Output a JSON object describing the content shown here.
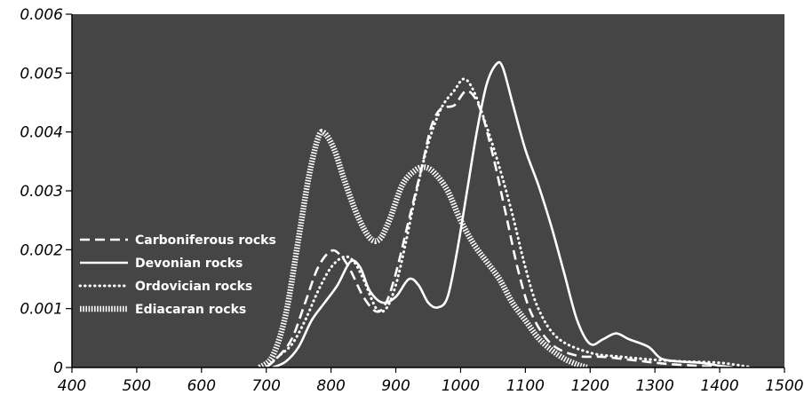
{
  "chart_data": {
    "type": "line",
    "title": "",
    "xlabel": "",
    "ylabel": "",
    "xlim": [
      400,
      1500
    ],
    "ylim": [
      0,
      0.006
    ],
    "x_ticks": [
      "400",
      "500",
      "600",
      "700",
      "800",
      "900",
      "1000",
      "1100",
      "1200",
      "1300",
      "1400",
      "1500"
    ],
    "y_ticks": [
      "0",
      "0.001",
      "0.002",
      "0.003",
      "0.004",
      "0.005",
      "0.006"
    ],
    "grid": false,
    "legend_position": "left",
    "colors": {
      "plot_background": "#454545",
      "series": "#ffffff",
      "axis": "#000000"
    },
    "series": [
      {
        "name": "Carboniferous rocks",
        "style": "dashed",
        "points": [
          [
            700,
            0
          ],
          [
            720,
            0.0002
          ],
          [
            740,
            0.0005
          ],
          [
            760,
            0.0011
          ],
          [
            780,
            0.0017
          ],
          [
            800,
            0.00198
          ],
          [
            815,
            0.0019
          ],
          [
            830,
            0.00165
          ],
          [
            850,
            0.0012
          ],
          [
            870,
            0.00095
          ],
          [
            885,
            0.0011
          ],
          [
            900,
            0.0016
          ],
          [
            920,
            0.0025
          ],
          [
            940,
            0.0034
          ],
          [
            955,
            0.0041
          ],
          [
            970,
            0.0044
          ],
          [
            990,
            0.00445
          ],
          [
            1010,
            0.0047
          ],
          [
            1030,
            0.0044
          ],
          [
            1050,
            0.0036
          ],
          [
            1070,
            0.0026
          ],
          [
            1090,
            0.0016
          ],
          [
            1110,
            0.0009
          ],
          [
            1140,
            0.0004
          ],
          [
            1180,
            0.0002
          ],
          [
            1220,
            0.00018
          ],
          [
            1270,
            0.00012
          ],
          [
            1320,
            6e-05
          ],
          [
            1380,
            2e-05
          ],
          [
            1420,
            0
          ]
        ]
      },
      {
        "name": "Devonian rocks",
        "style": "solid",
        "points": [
          [
            710,
            0
          ],
          [
            730,
            0.0001
          ],
          [
            750,
            0.00035
          ],
          [
            770,
            0.0008
          ],
          [
            790,
            0.0011
          ],
          [
            810,
            0.0014
          ],
          [
            830,
            0.0018
          ],
          [
            845,
            0.0017
          ],
          [
            860,
            0.0013
          ],
          [
            880,
            0.0011
          ],
          [
            900,
            0.0012
          ],
          [
            920,
            0.0015
          ],
          [
            935,
            0.0014
          ],
          [
            950,
            0.0011
          ],
          [
            965,
            0.00102
          ],
          [
            980,
            0.0012
          ],
          [
            995,
            0.002
          ],
          [
            1010,
            0.003
          ],
          [
            1025,
            0.004
          ],
          [
            1040,
            0.0048
          ],
          [
            1055,
            0.00515
          ],
          [
            1065,
            0.0051
          ],
          [
            1080,
            0.0045
          ],
          [
            1100,
            0.0037
          ],
          [
            1120,
            0.0031
          ],
          [
            1140,
            0.0024
          ],
          [
            1160,
            0.0016
          ],
          [
            1180,
            0.0008
          ],
          [
            1200,
            0.0004
          ],
          [
            1220,
            0.00048
          ],
          [
            1240,
            0.00058
          ],
          [
            1260,
            0.00048
          ],
          [
            1290,
            0.00035
          ],
          [
            1310,
            0.00015
          ],
          [
            1340,
            0.0001
          ],
          [
            1370,
            8e-05
          ],
          [
            1400,
            3e-05
          ],
          [
            1420,
            0
          ]
        ]
      },
      {
        "name": "Ordovician rocks",
        "style": "dotted",
        "points": [
          [
            700,
            0
          ],
          [
            720,
            0.0002
          ],
          [
            740,
            0.0004
          ],
          [
            760,
            0.0008
          ],
          [
            780,
            0.0013
          ],
          [
            800,
            0.0017
          ],
          [
            820,
            0.00188
          ],
          [
            835,
            0.0018
          ],
          [
            850,
            0.0015
          ],
          [
            870,
            0.001
          ],
          [
            885,
            0.001
          ],
          [
            900,
            0.0014
          ],
          [
            915,
            0.0021
          ],
          [
            930,
            0.0029
          ],
          [
            950,
            0.0038
          ],
          [
            970,
            0.0044
          ],
          [
            990,
            0.0047
          ],
          [
            1005,
            0.0049
          ],
          [
            1020,
            0.0047
          ],
          [
            1040,
            0.0041
          ],
          [
            1060,
            0.0034
          ],
          [
            1080,
            0.0026
          ],
          [
            1100,
            0.0017
          ],
          [
            1120,
            0.001
          ],
          [
            1150,
            0.0005
          ],
          [
            1200,
            0.00025
          ],
          [
            1250,
            0.00018
          ],
          [
            1300,
            0.00013
          ],
          [
            1350,
            0.0001
          ],
          [
            1400,
            8e-05
          ],
          [
            1440,
            2e-05
          ],
          [
            1450,
            0
          ]
        ]
      },
      {
        "name": "Ediacaran rocks",
        "style": "hatched",
        "points": [
          [
            690,
            0
          ],
          [
            710,
            0.0002
          ],
          [
            730,
            0.0009
          ],
          [
            750,
            0.0022
          ],
          [
            765,
            0.0032
          ],
          [
            780,
            0.0039
          ],
          [
            790,
            0.00398
          ],
          [
            805,
            0.0037
          ],
          [
            820,
            0.0032
          ],
          [
            840,
            0.0026
          ],
          [
            860,
            0.0022
          ],
          [
            875,
            0.00218
          ],
          [
            890,
            0.0025
          ],
          [
            910,
            0.0031
          ],
          [
            930,
            0.00335
          ],
          [
            945,
            0.0034
          ],
          [
            960,
            0.0033
          ],
          [
            980,
            0.003
          ],
          [
            1000,
            0.0025
          ],
          [
            1020,
            0.0021
          ],
          [
            1040,
            0.0018
          ],
          [
            1060,
            0.0015
          ],
          [
            1080,
            0.0011
          ],
          [
            1100,
            0.0008
          ],
          [
            1120,
            0.0005
          ],
          [
            1140,
            0.0003
          ],
          [
            1160,
            0.00015
          ],
          [
            1180,
            5e-05
          ],
          [
            1195,
            0
          ]
        ]
      }
    ]
  }
}
